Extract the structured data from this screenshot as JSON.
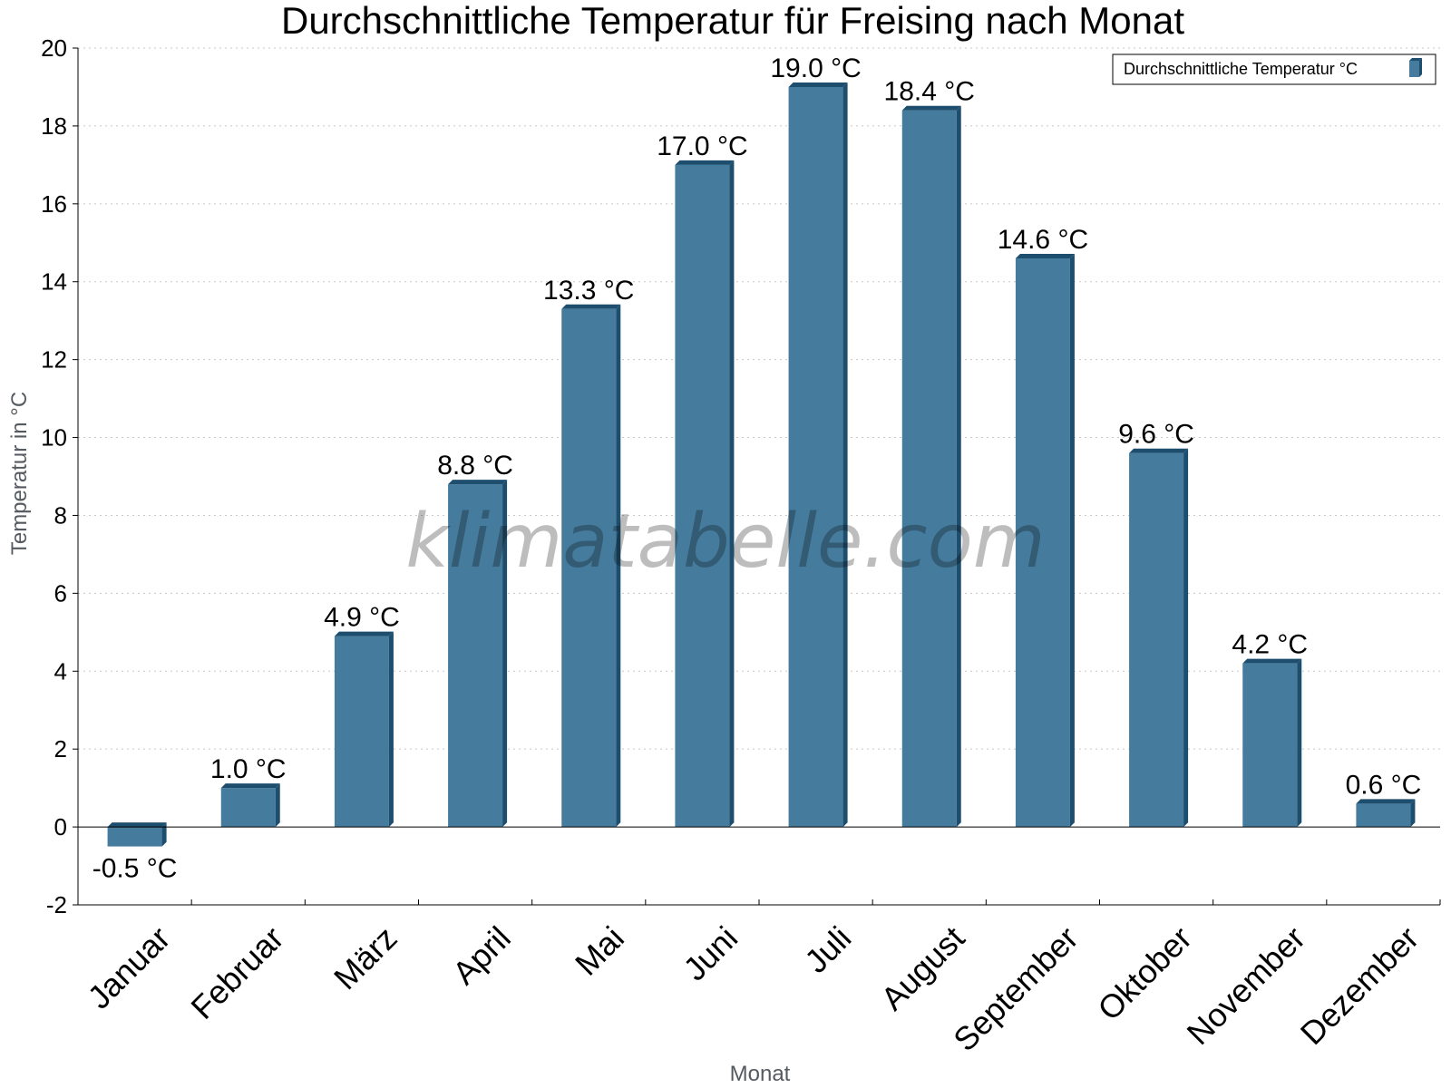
{
  "chart_data": {
    "type": "bar",
    "title": "Durchschnittliche Temperatur für Freising nach Monat",
    "xlabel": "Monat",
    "ylabel": "Temperatur in °C",
    "categories": [
      "Januar",
      "Februar",
      "März",
      "April",
      "Mai",
      "Juni",
      "Juli",
      "August",
      "September",
      "Oktober",
      "November",
      "Dezember"
    ],
    "series": [
      {
        "name": "Durchschnittliche Temperatur °C",
        "values": [
          -0.5,
          1.0,
          4.9,
          8.8,
          13.3,
          17.0,
          19.0,
          18.4,
          14.6,
          9.6,
          4.2,
          0.6
        ],
        "labels": [
          "-0.5 °C",
          "1.0 °C",
          "4.9 °C",
          "8.8 °C",
          "13.3 °C",
          "17.0 °C",
          "19.0 °C",
          "18.4 °C",
          "14.6 °C",
          "9.6 °C",
          "4.2 °C",
          "0.6 °C"
        ]
      }
    ],
    "ylim": [
      -2,
      20
    ],
    "yticks": [
      "-2",
      "0",
      "2",
      "4",
      "6",
      "8",
      "10",
      "12",
      "14",
      "16",
      "18",
      "20"
    ],
    "grid": "horizontal-dotted",
    "legend_position": "top-right",
    "watermark": "klimatabelle.com",
    "colors": {
      "bar_front": "#457b9d",
      "bar_side": "#1d4e6e",
      "bar_top": "#1d4e6e",
      "grid": "#c8c8c8"
    }
  }
}
